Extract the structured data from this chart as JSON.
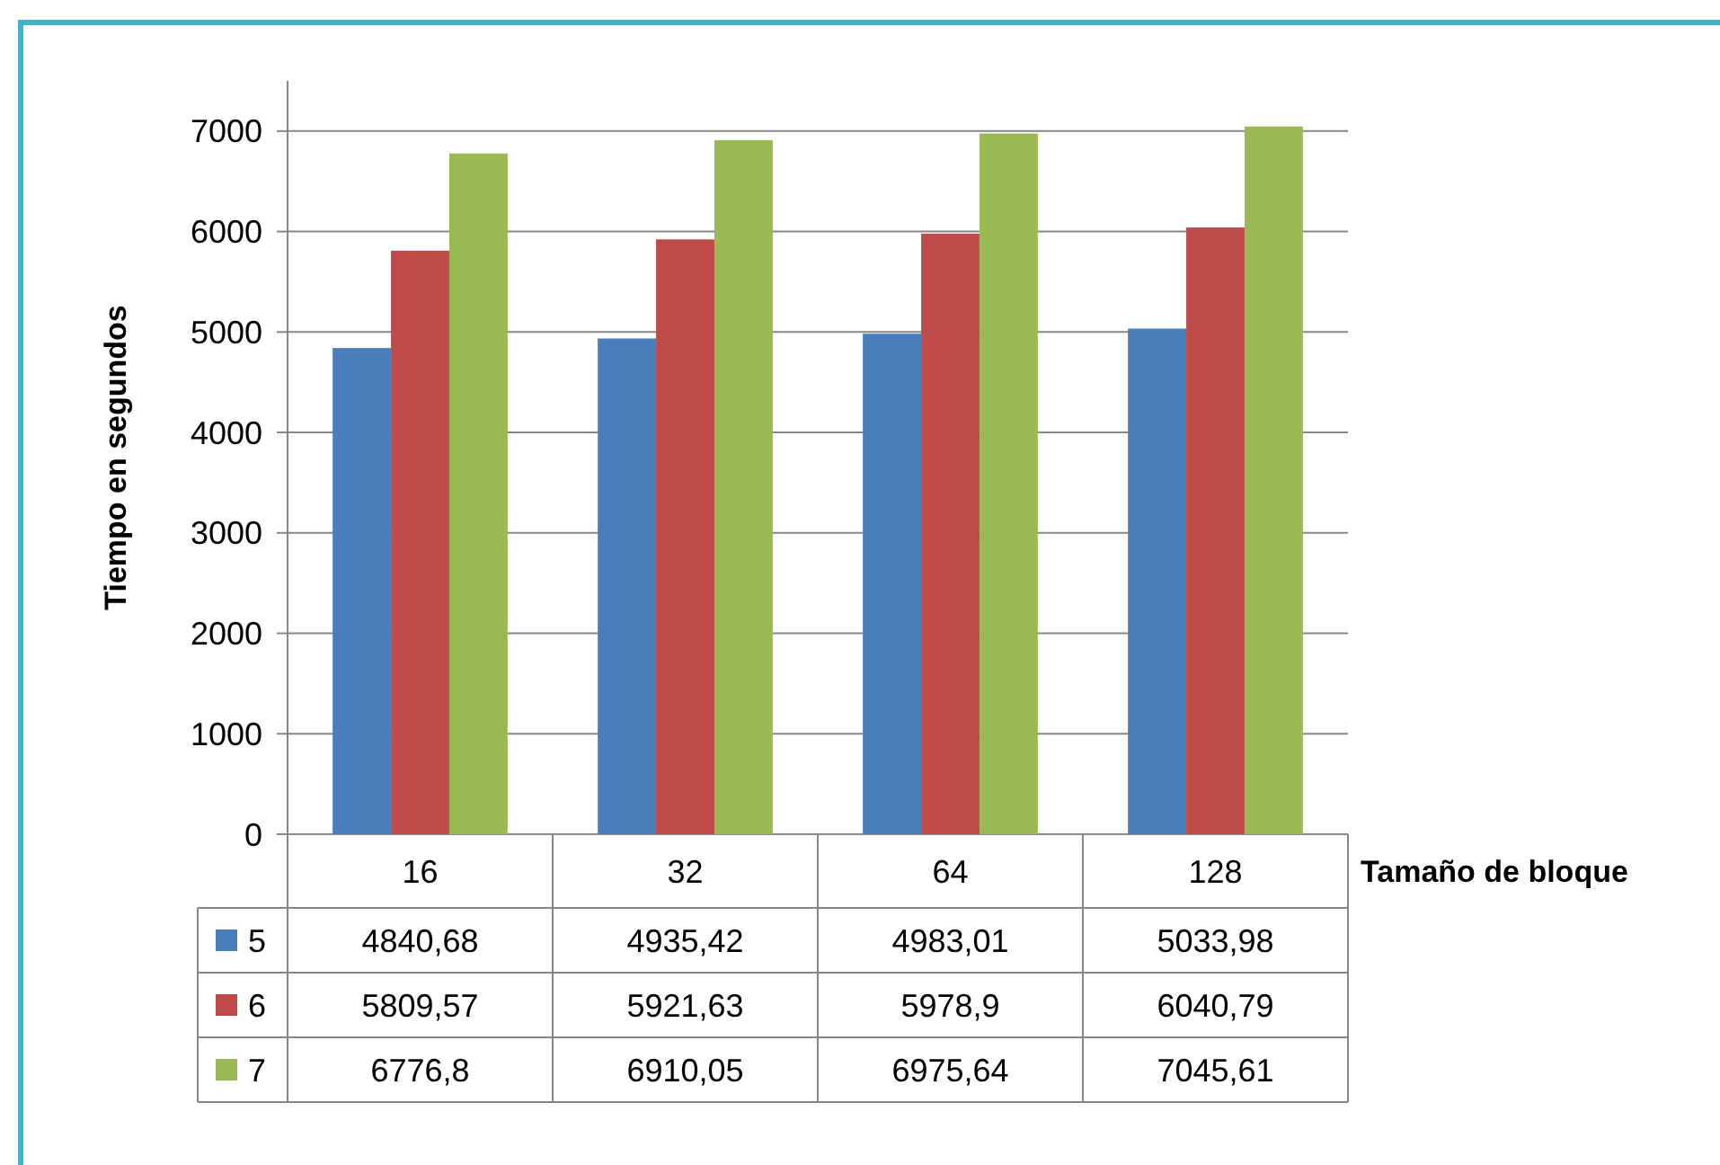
{
  "chart_data": {
    "type": "bar",
    "xlabel": "Tamaño de bloque",
    "ylabel": "Tiempo en segundos",
    "categories": [
      "16",
      "32",
      "64",
      "128"
    ],
    "series": [
      {
        "name": "5",
        "color": "#4a7ebb",
        "values": [
          4840.68,
          4935.42,
          4983.01,
          5033.98
        ],
        "value_labels": [
          "4840,68",
          "4935,42",
          "4983,01",
          "5033,98"
        ]
      },
      {
        "name": "6",
        "color": "#be4b48",
        "values": [
          5809.57,
          5921.63,
          5978.9,
          6040.79
        ],
        "value_labels": [
          "5809,57",
          "5921,63",
          "5978,9",
          "6040,79"
        ]
      },
      {
        "name": "7",
        "color": "#98b954",
        "values": [
          6776.8,
          6910.05,
          6975.64,
          7045.61
        ],
        "value_labels": [
          "6776,8",
          "6910,05",
          "6975,64",
          "7045,61"
        ]
      }
    ],
    "ylim": [
      0,
      7500
    ],
    "yticks": [
      0,
      1000,
      2000,
      3000,
      4000,
      5000,
      6000,
      7000
    ],
    "grid": true,
    "legend": "bottom"
  }
}
